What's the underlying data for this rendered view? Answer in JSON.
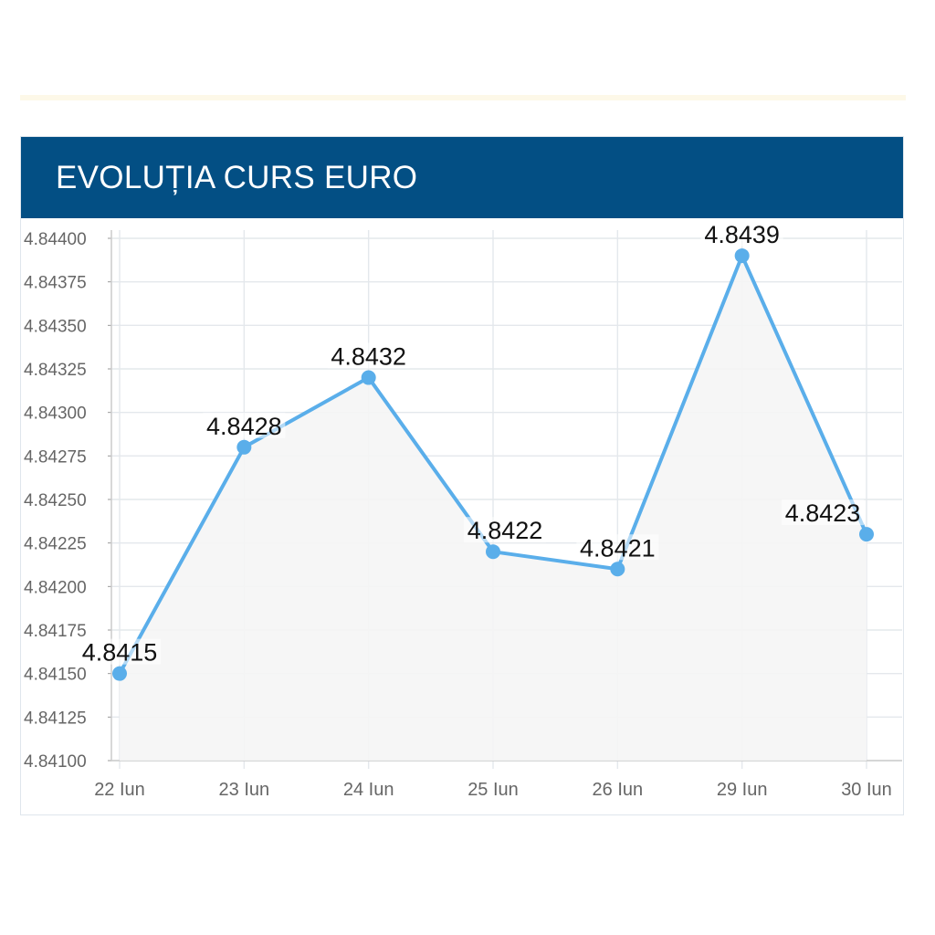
{
  "chart_data": {
    "type": "line",
    "title": "EVOLUȚIA CURS EURO",
    "categories": [
      "22 Iun",
      "23 Iun",
      "24 Iun",
      "25 Iun",
      "26 Iun",
      "29 Iun",
      "30 Iun"
    ],
    "series": [
      {
        "values": [
          4.8415,
          4.8428,
          4.8432,
          4.8422,
          4.8421,
          4.8439,
          4.8423
        ],
        "labels": [
          "4.8415",
          "4.8428",
          "4.8432",
          "4.8422",
          "4.8421",
          "4.8439",
          "4.8423"
        ]
      }
    ],
    "ylim": [
      4.841,
      4.844
    ],
    "yticks": [
      "4.84100",
      "4.84125",
      "4.84150",
      "4.84175",
      "4.84200",
      "4.84225",
      "4.84250",
      "4.84275",
      "4.84300",
      "4.84325",
      "4.84350",
      "4.84375",
      "4.84400"
    ],
    "grid": true,
    "line_color": "#5aaeea",
    "area_color": "#f5f5f5",
    "xlabel": "",
    "ylabel": ""
  },
  "header": {
    "title": "EVOLUȚIA CURS EURO",
    "background": "#034f84"
  }
}
